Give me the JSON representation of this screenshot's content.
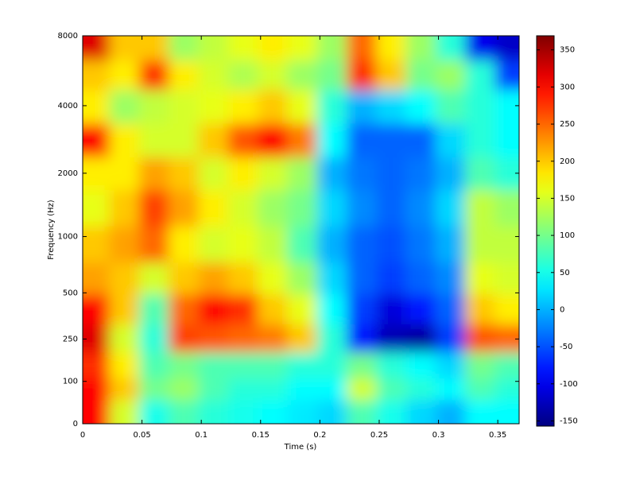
{
  "chart_data": {
    "type": "heatmap",
    "colormap": "jet",
    "yscale": "log",
    "xlabel": "Time (s)",
    "ylabel": "Frequency (Hz)",
    "xlim": [
      0,
      0.368
    ],
    "ylim": [
      0,
      8000
    ],
    "clim": [
      -157,
      369
    ],
    "xticks": [
      0,
      0.05,
      0.1,
      0.15,
      0.2,
      0.25,
      0.3,
      0.35
    ],
    "yticks": [
      0,
      100,
      250,
      500,
      1000,
      2000,
      4000,
      8000
    ],
    "cticks": [
      -150,
      -100,
      -50,
      0,
      50,
      100,
      150,
      200,
      250,
      300,
      350
    ],
    "x": [
      0.01,
      0.035,
      0.06,
      0.085,
      0.11,
      0.135,
      0.16,
      0.185,
      0.21,
      0.235,
      0.26,
      0.285,
      0.31,
      0.335,
      0.36
    ],
    "y": [
      30,
      75,
      150,
      250,
      400,
      600,
      900,
      1400,
      2000,
      2800,
      4000,
      5500,
      7200
    ],
    "z": [
      [
        300,
        150,
        50,
        80,
        60,
        50,
        40,
        30,
        20,
        80,
        50,
        20,
        0,
        40,
        40
      ],
      [
        300,
        200,
        100,
        120,
        80,
        60,
        60,
        40,
        40,
        150,
        80,
        60,
        40,
        80,
        60
      ],
      [
        280,
        180,
        80,
        100,
        80,
        80,
        80,
        60,
        60,
        100,
        60,
        40,
        20,
        100,
        80
      ],
      [
        320,
        150,
        60,
        270,
        260,
        250,
        240,
        200,
        60,
        -80,
        -130,
        -140,
        -60,
        260,
        250
      ],
      [
        300,
        200,
        80,
        250,
        300,
        280,
        200,
        160,
        40,
        -60,
        -110,
        -80,
        -40,
        200,
        180
      ],
      [
        220,
        200,
        150,
        200,
        220,
        200,
        160,
        120,
        20,
        -40,
        -60,
        -40,
        -20,
        160,
        150
      ],
      [
        200,
        220,
        250,
        180,
        150,
        160,
        140,
        80,
        0,
        -40,
        -50,
        -30,
        0,
        140,
        140
      ],
      [
        160,
        200,
        270,
        220,
        180,
        150,
        120,
        100,
        20,
        -20,
        -40,
        -20,
        20,
        140,
        120
      ],
      [
        180,
        180,
        220,
        200,
        150,
        180,
        150,
        120,
        0,
        -30,
        -40,
        -30,
        0,
        80,
        60
      ],
      [
        300,
        180,
        150,
        150,
        200,
        260,
        300,
        240,
        40,
        -40,
        -40,
        -40,
        20,
        60,
        40
      ],
      [
        180,
        120,
        140,
        150,
        160,
        180,
        200,
        160,
        60,
        0,
        20,
        40,
        80,
        60,
        40
      ],
      [
        200,
        180,
        280,
        180,
        150,
        130,
        150,
        120,
        100,
        280,
        200,
        100,
        120,
        60,
        -60
      ],
      [
        320,
        200,
        200,
        120,
        140,
        160,
        180,
        160,
        120,
        250,
        180,
        120,
        60,
        -100,
        -120
      ]
    ]
  }
}
